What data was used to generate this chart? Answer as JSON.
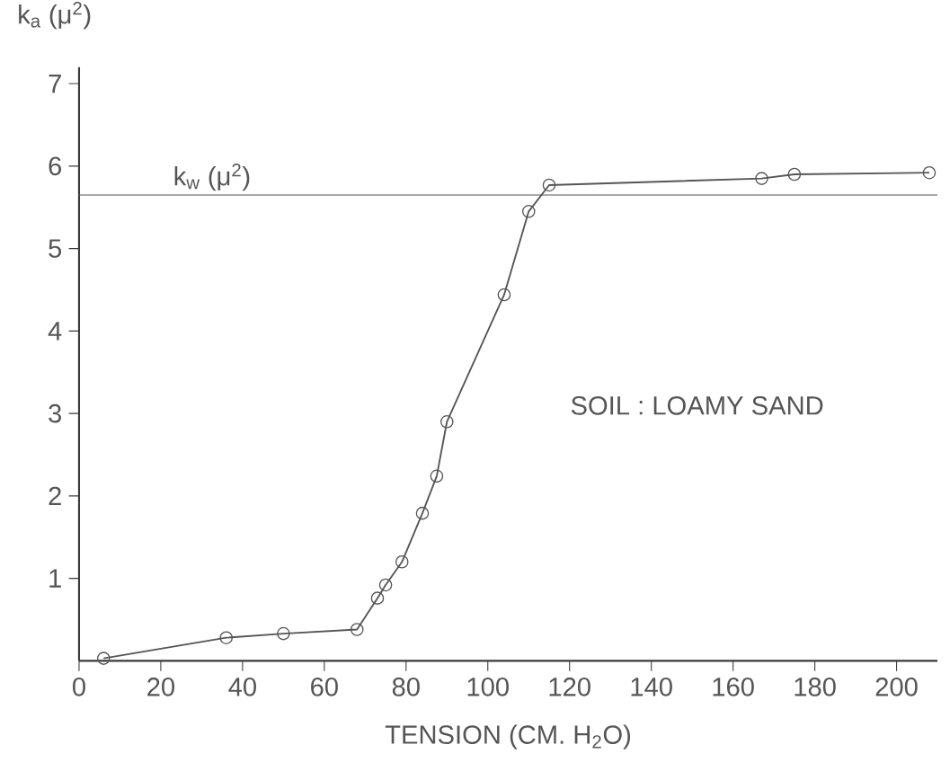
{
  "chart_data": {
    "type": "line",
    "xlabel": "TENSION (CM. H$_{2}$O)",
    "ylabel": "k$_{a}$ (μ$^{2}$)",
    "x": [
      6,
      36,
      50,
      68,
      73,
      75,
      79,
      84,
      87.5,
      90,
      104,
      110,
      115,
      167,
      175,
      208
    ],
    "values": [
      0.03,
      0.28,
      0.33,
      0.38,
      0.76,
      0.92,
      1.2,
      1.79,
      2.24,
      2.9,
      4.44,
      5.45,
      5.77,
      5.85,
      5.9,
      5.92
    ],
    "color": "#555555",
    "marker": "circle",
    "line_style": "solid",
    "xlim": [
      0,
      210
    ],
    "ylim": [
      0,
      7.2
    ],
    "xticks": [
      0,
      20,
      40,
      60,
      80,
      100,
      120,
      140,
      160,
      180,
      200
    ],
    "yticks": [
      1,
      2,
      3,
      4,
      5,
      6,
      7
    ],
    "ref_lines": [
      {
        "axis": "y",
        "value": 5.65,
        "label": "k$_{w}$ (μ$^{2}$)",
        "color": "#555555"
      }
    ],
    "annotations": [
      "SOIL : LOAMY SAND"
    ],
    "grid": false
  }
}
